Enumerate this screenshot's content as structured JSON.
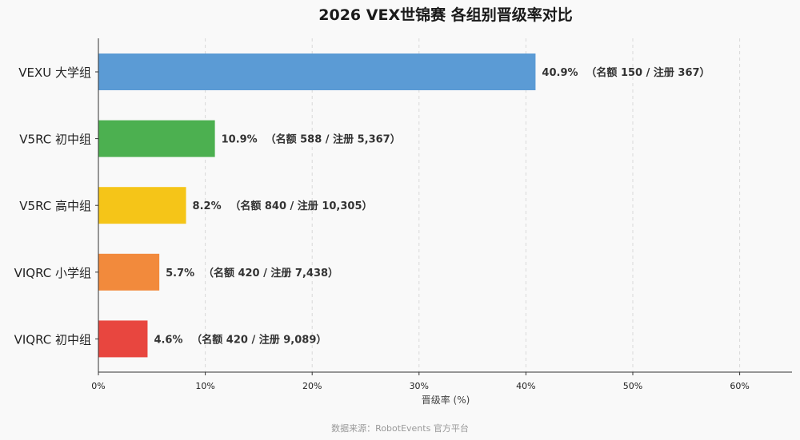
{
  "chart_data": {
    "type": "bar",
    "orientation": "horizontal",
    "title": "2026 VEX世锦赛  各组别晋级率对比",
    "xlabel": "晋级率 (%)",
    "xlim": [
      0,
      65
    ],
    "xticks": [
      0,
      10,
      20,
      30,
      40,
      50,
      60
    ],
    "xtick_labels": [
      "0%",
      "10%",
      "20%",
      "30%",
      "40%",
      "50%",
      "60%"
    ],
    "grid": "vertical dashed",
    "categories": [
      "VEXU 大学组",
      "V5RC 初中组",
      "V5RC 高中组",
      "VIQRC 小学组",
      "VIQRC 初中组"
    ],
    "values": [
      40.9,
      10.9,
      8.2,
      5.7,
      4.6
    ],
    "colors": [
      "#5b9bd5",
      "#4cb050",
      "#f5c518",
      "#f28a3c",
      "#e8463f"
    ],
    "value_labels": [
      "40.9%",
      "10.9%",
      "8.2%",
      "5.7%",
      "4.6%"
    ],
    "detail_labels": [
      "（名额 150 / 注册 367）",
      "（名额 588 / 注册 5,367）",
      "（名额 840 / 注册 10,305）",
      "（名额 420 / 注册 7,438）",
      "（名额 420 / 注册 9,089）"
    ],
    "source_note": "数据来源：RobotEvents 官方平台"
  }
}
